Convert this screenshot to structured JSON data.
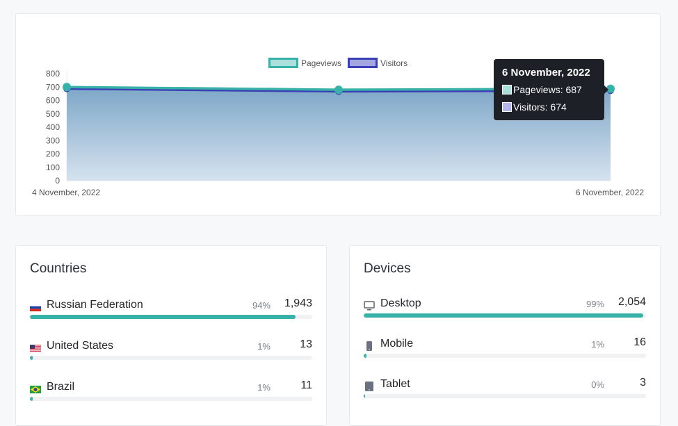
{
  "chart_data": {
    "type": "line",
    "x": [
      "4 November, 2022",
      "5 November, 2022",
      "6 November, 2022"
    ],
    "x_tick_labels": [
      "4 November, 2022",
      "6 November, 2022"
    ],
    "ylim": [
      0,
      800
    ],
    "y_ticks": [
      0,
      100,
      200,
      300,
      400,
      500,
      600,
      700,
      800
    ],
    "legend_position": "top",
    "grid": false,
    "series": [
      {
        "name": "Pageviews",
        "values": [
          700,
          680,
          687
        ],
        "color": "#38b2a8",
        "fill": "#a9e0dc"
      },
      {
        "name": "Visitors",
        "values": [
          688,
          668,
          674
        ],
        "color": "#3a3fb5",
        "fill": "#a3a6e0"
      }
    ],
    "area_fill_top": "#7fa8c8",
    "area_fill_bottom": "#d5e2ee"
  },
  "tooltip": {
    "title": "6 November, 2022",
    "lines": [
      "Pageviews: 687",
      "Visitors: 674"
    ]
  },
  "countries": {
    "title": "Countries",
    "items": [
      {
        "name": "Russian Federation",
        "pct": "94%",
        "count": "1,943",
        "fraction": 0.94,
        "flag": "ru"
      },
      {
        "name": "United States",
        "pct": "1%",
        "count": "13",
        "fraction": 0.01,
        "flag": "us"
      },
      {
        "name": "Brazil",
        "pct": "1%",
        "count": "11",
        "fraction": 0.01,
        "flag": "br"
      }
    ]
  },
  "devices": {
    "title": "Devices",
    "items": [
      {
        "name": "Desktop",
        "pct": "99%",
        "count": "2,054",
        "fraction": 0.99,
        "icon": "desktop-icon"
      },
      {
        "name": "Mobile",
        "pct": "1%",
        "count": "16",
        "fraction": 0.01,
        "icon": "mobile-icon"
      },
      {
        "name": "Tablet",
        "pct": "0%",
        "count": "3",
        "fraction": 0.002,
        "icon": "tablet-icon"
      }
    ]
  }
}
